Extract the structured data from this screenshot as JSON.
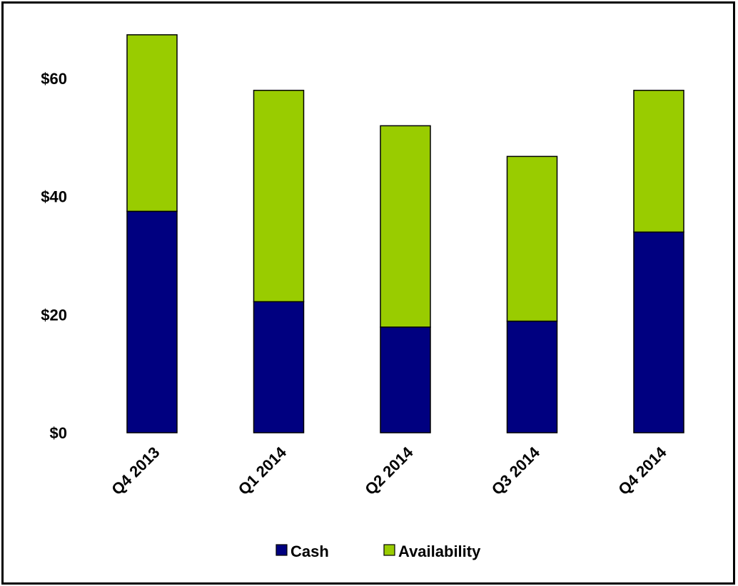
{
  "chart_data": {
    "type": "bar",
    "stacked": true,
    "title": "",
    "xlabel": "",
    "ylabel": "",
    "categories": [
      "Q4 2013",
      "Q1 2014",
      "Q2 2014",
      "Q3 2014",
      "Q4 2014"
    ],
    "series": [
      {
        "name": "Cash",
        "color": "#000080",
        "values": [
          37.5,
          22.2,
          17.9,
          18.9,
          34.0
        ]
      },
      {
        "name": "Availability",
        "color": "#99CC00",
        "values": [
          29.9,
          35.8,
          34.1,
          27.9,
          24.0
        ]
      }
    ],
    "ylim": [
      0,
      67.5
    ],
    "yticks": [
      0,
      20,
      40,
      60
    ],
    "ytick_labels": [
      "$0",
      "$20",
      "$40",
      "$60"
    ],
    "xtick_rotation_deg": -45,
    "grid": false,
    "legend_position": "bottom"
  }
}
